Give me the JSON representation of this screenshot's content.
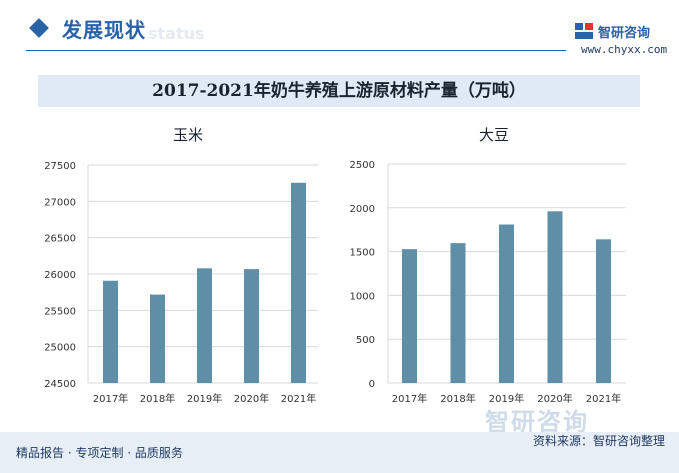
{
  "header": {
    "section_title": "发展现状",
    "watermark_en": "status",
    "logo_name": "智研咨询",
    "logo_url": "www.chyxx.com"
  },
  "main_title": "2017-2021年奶牛养殖上游原材料产量（万吨）",
  "footer": {
    "tagline": "精品报告 · 专项定制 · 品质服务",
    "source": "资料来源：智研咨询整理",
    "watermark": "智研咨询"
  },
  "colors": {
    "bar": "#5f8ea7",
    "accent": "#2a62a8",
    "band": "#dfeaf4"
  },
  "chart_data": [
    {
      "type": "bar",
      "title": "玉米",
      "categories": [
        "2017年",
        "2018年",
        "2019年",
        "2020年",
        "2021年"
      ],
      "values": [
        25907,
        25717,
        26078,
        26067,
        27255
      ],
      "ylim": [
        24500,
        27500
      ],
      "yticks": [
        24500,
        25000,
        25500,
        26000,
        26500,
        27000,
        27500
      ],
      "xlabel": "",
      "ylabel": "",
      "grid": true
    },
    {
      "type": "bar",
      "title": "大豆",
      "categories": [
        "2017年",
        "2018年",
        "2019年",
        "2020年",
        "2021年"
      ],
      "values": [
        1528,
        1597,
        1809,
        1960,
        1640
      ],
      "ylim": [
        0,
        2500
      ],
      "yticks": [
        0,
        500,
        1000,
        1500,
        2000,
        2500
      ],
      "xlabel": "",
      "ylabel": "",
      "grid": true
    }
  ]
}
